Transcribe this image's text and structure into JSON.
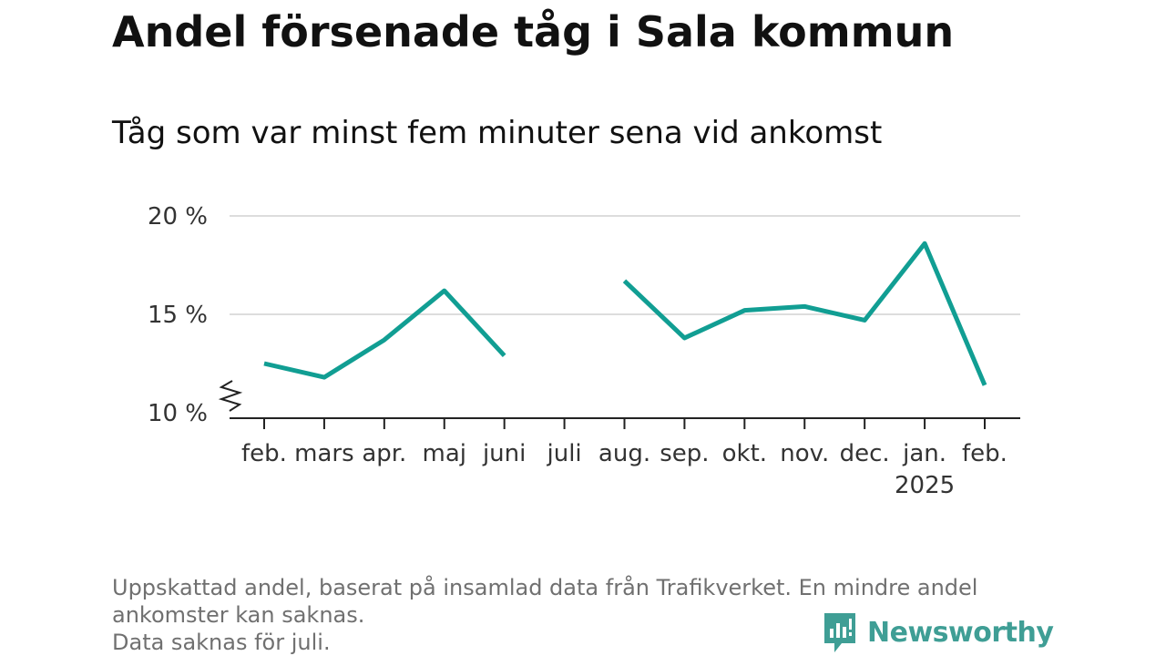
{
  "title": "Andel försenade tåg i Sala kommun",
  "subtitle": "Tåg som var minst fem minuter sena vid ankomst",
  "chart_data": {
    "type": "line",
    "categories": [
      "feb.",
      "mars",
      "apr.",
      "maj",
      "juni",
      "juli",
      "aug.",
      "sep.",
      "okt.",
      "nov.",
      "dec.",
      "jan.",
      "feb."
    ],
    "category_sublabels": [
      "",
      "",
      "",
      "",
      "",
      "",
      "",
      "",
      "",
      "",
      "",
      "2025",
      ""
    ],
    "series": [
      {
        "values": [
          12.5,
          11.8,
          13.7,
          16.2,
          12.9,
          null,
          16.7,
          13.8,
          15.2,
          15.4,
          14.7,
          18.6,
          11.4
        ]
      }
    ],
    "ylim": [
      10,
      20
    ],
    "yticks": [
      10,
      15,
      20
    ],
    "ytick_labels": [
      "10 %",
      "15 %",
      "20 %"
    ],
    "y_axis_break": true,
    "grid": true,
    "line_color": "#119e93"
  },
  "footnote": {
    "line1": "Uppskattad andel, baserat på insamlad data från Trafikverket. En mindre andel ankomster kan saknas.",
    "line2": "Data saknas för juli."
  },
  "logo": {
    "text": "Newsworthy",
    "icon": "newsworthy-logo-icon",
    "color": "#3f9e95"
  }
}
